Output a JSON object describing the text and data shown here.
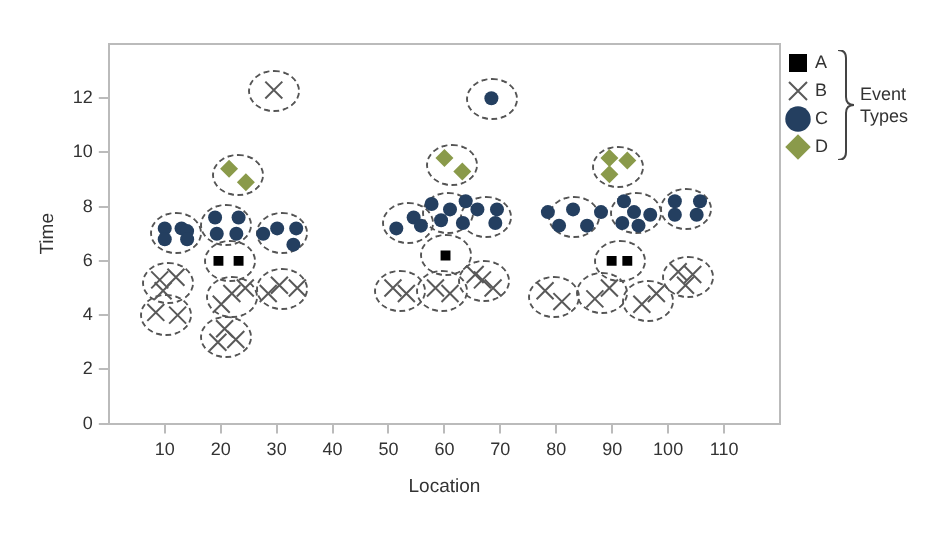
{
  "chart_data": {
    "type": "scatter",
    "xlabel": "Location",
    "ylabel": "Time",
    "legend_title": "Event Types",
    "legend": "right",
    "grid": false,
    "xlim": [
      0,
      120
    ],
    "xticks": [
      10,
      20,
      30,
      40,
      50,
      60,
      70,
      80,
      90,
      100,
      110
    ],
    "ylim": [
      0,
      14
    ],
    "yticks": [
      0,
      2,
      4,
      6,
      8,
      10,
      12
    ],
    "series": [
      {
        "name": "A",
        "color": "#000000",
        "marker": "square",
        "x": [
          19.6,
          23.2,
          60.2,
          89.9,
          92.7
        ],
        "values": [
          6.0,
          6.0,
          6.2,
          6.0,
          6.0
        ]
      },
      {
        "name": "B",
        "color": "#595959",
        "marker": "cross",
        "x": [
          29.5,
          9.1,
          12,
          9.7,
          8.4,
          12.3,
          22,
          24.4,
          20.1,
          30.5,
          33.7,
          28.5,
          20.7,
          22.7,
          19.5,
          50.8,
          53.2,
          58.4,
          61,
          66.8,
          68.7,
          65.5,
          78,
          81,
          86.9,
          89.5,
          95.3,
          97.9,
          101.8,
          104.4,
          103.1
        ],
        "values": [
          12.3,
          5.3,
          5.4,
          4.9,
          4.1,
          4.0,
          4.8,
          5.0,
          4.4,
          5.1,
          5.0,
          4.8,
          3.5,
          3.1,
          3.0,
          5.0,
          4.8,
          5.0,
          4.8,
          5.3,
          5.0,
          5.5,
          4.9,
          4.5,
          4.6,
          5.0,
          4.4,
          4.8,
          5.6,
          5.5,
          5.1
        ]
      },
      {
        "name": "C",
        "color": "#243f60",
        "marker": "circle",
        "x": [
          10,
          10,
          13,
          14,
          14,
          19,
          23.2,
          19.3,
          22.8,
          27.6,
          30.1,
          33.5,
          33,
          68.4,
          51.4,
          54.5,
          55.8,
          57.7,
          61,
          63.8,
          59.4,
          63.3,
          65.9,
          69.4,
          69.1,
          78.5,
          80.5,
          83,
          85.5,
          88,
          92.1,
          93.9,
          96.8,
          91.8,
          94.7,
          101.2,
          105.7,
          101.2,
          105.1
        ],
        "values": [
          7.2,
          6.8,
          7.2,
          7.1,
          6.8,
          7.6,
          7.6,
          7.0,
          7.0,
          7.0,
          7.2,
          7.2,
          6.6,
          12.0,
          7.2,
          7.6,
          7.3,
          8.1,
          7.9,
          8.2,
          7.5,
          7.4,
          7.9,
          7.9,
          7.4,
          7.8,
          7.3,
          7.9,
          7.3,
          7.8,
          8.2,
          7.8,
          7.7,
          7.4,
          7.3,
          8.2,
          8.2,
          7.7,
          7.7
        ]
      },
      {
        "name": "D",
        "color": "#8a9a4a",
        "marker": "diamond",
        "x": [
          21.5,
          24.5,
          60,
          63.2,
          89.5,
          92.7,
          89.5
        ],
        "values": [
          9.4,
          8.9,
          9.8,
          9.3,
          9.8,
          9.7,
          9.2
        ]
      }
    ]
  }
}
